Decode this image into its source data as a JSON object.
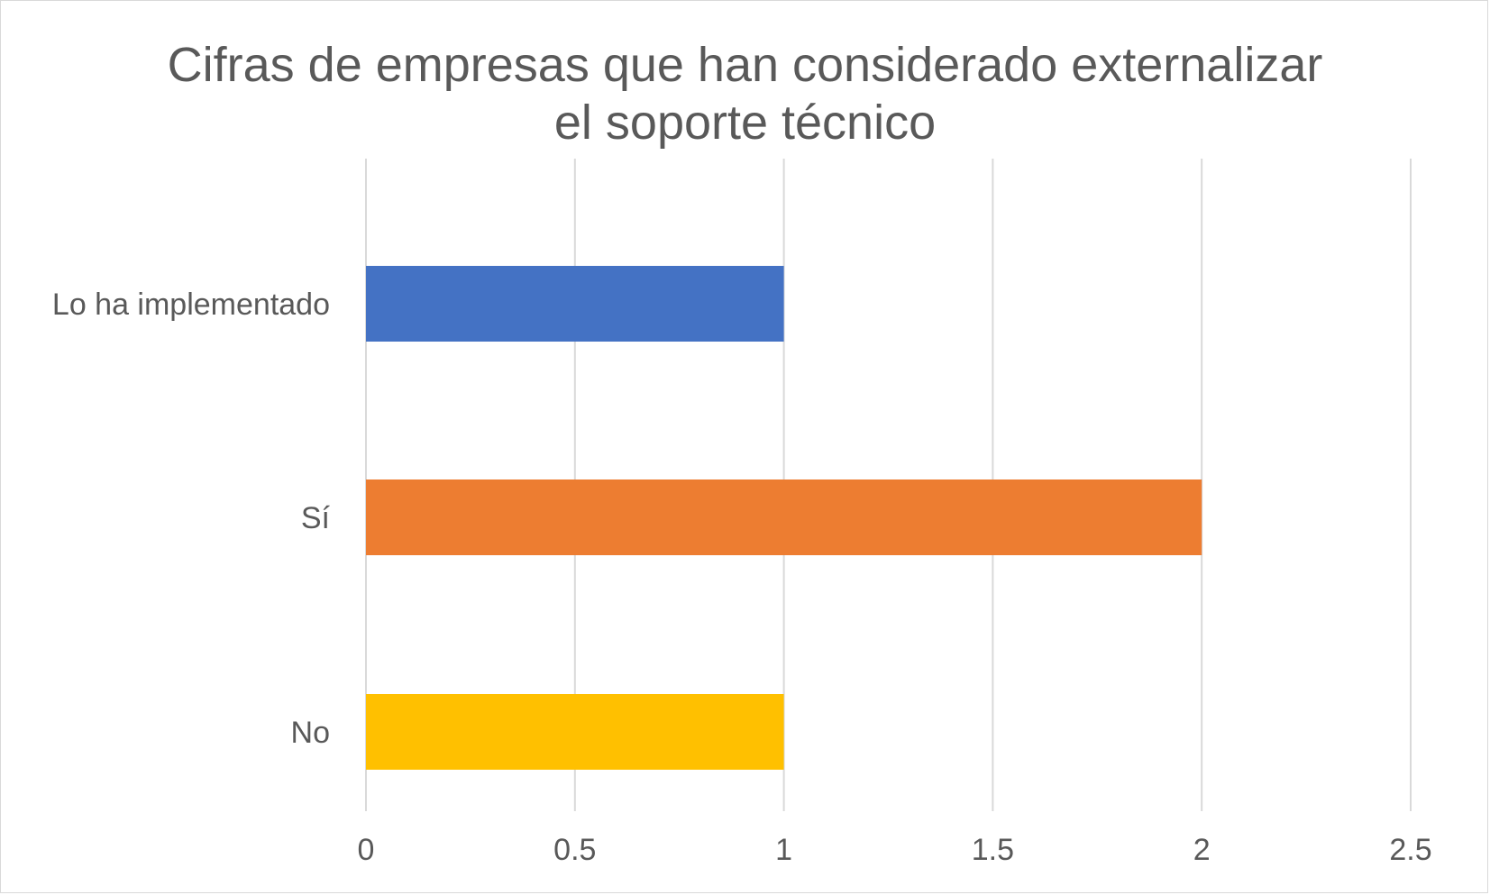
{
  "chart_data": {
    "type": "bar",
    "orientation": "horizontal",
    "title_lines": [
      "Cifras de empresas que han considerado externalizar",
      "el soporte técnico"
    ],
    "categories": [
      "Lo ha implementado",
      "Sí",
      "No"
    ],
    "values": [
      1,
      2,
      1
    ],
    "bar_colors": [
      "#4472C4",
      "#ED7D31",
      "#FFC000"
    ],
    "xlim": [
      0,
      2.5
    ],
    "x_ticks": [
      0,
      0.5,
      1,
      1.5,
      2,
      2.5
    ],
    "x_tick_labels": [
      "0",
      "0.5",
      "1",
      "1.5",
      "2",
      "2.5"
    ],
    "grid": true,
    "legend": "none",
    "xlabel": "",
    "ylabel": ""
  },
  "colors": {
    "gridline": "#d9d9d9",
    "text": "#595959"
  }
}
